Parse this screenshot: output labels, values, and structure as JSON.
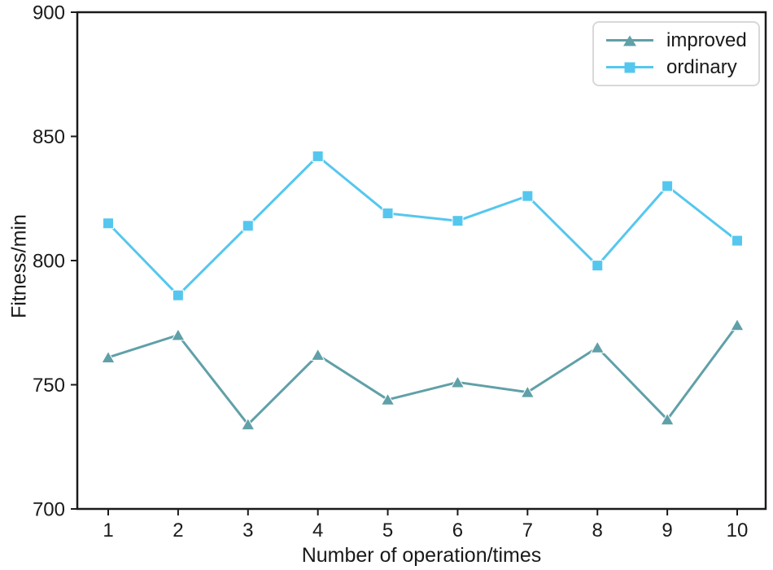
{
  "figure": {
    "background": "#ffffff",
    "frame_color": "#1a1a1a",
    "text_color": "#1a1a1a",
    "legend_border_color": "#d8d8d8"
  },
  "chart_data": {
    "type": "line",
    "title": "",
    "xlabel": "Number of operation/times",
    "ylabel": "Fitness/min",
    "x": [
      1,
      2,
      3,
      4,
      5,
      6,
      7,
      8,
      9,
      10
    ],
    "xticks": [
      "1",
      "2",
      "3",
      "4",
      "5",
      "6",
      "7",
      "8",
      "9",
      "10"
    ],
    "yticks": [
      "700",
      "750",
      "800",
      "850",
      "900"
    ],
    "ytick_values": [
      700,
      750,
      800,
      850,
      900
    ],
    "ylim": [
      700,
      900
    ],
    "grid": false,
    "legend_position": "upper right",
    "series": [
      {
        "name": "improved",
        "marker": "triangle",
        "color": "#60a0a8",
        "values": [
          761,
          770,
          734,
          762,
          744,
          751,
          747,
          765,
          736,
          774
        ]
      },
      {
        "name": "ordinary",
        "marker": "square",
        "color": "#55c7ee",
        "values": [
          815,
          786,
          814,
          842,
          819,
          816,
          826,
          798,
          830,
          808
        ]
      }
    ]
  }
}
